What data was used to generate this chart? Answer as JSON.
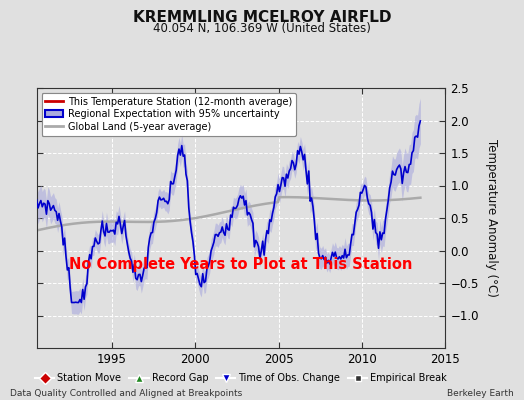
{
  "title": "KREMMLING MCELROY AIRFLD",
  "subtitle": "40.054 N, 106.369 W (United States)",
  "ylabel": "Temperature Anomaly (°C)",
  "xlim": [
    1990.5,
    2015.0
  ],
  "ylim": [
    -1.5,
    2.5
  ],
  "yticks": [
    -1.0,
    -0.5,
    0.0,
    0.5,
    1.0,
    1.5,
    2.0,
    2.5
  ],
  "xticks": [
    1995,
    2000,
    2005,
    2010,
    2015
  ],
  "background_color": "#e0e0e0",
  "plot_bg_color": "#e0e0e0",
  "no_data_text": "No Complete Years to Plot at This Station",
  "footer_left": "Data Quality Controlled and Aligned at Breakpoints",
  "footer_right": "Berkeley Earth",
  "blue_line_color": "#0000cc",
  "blue_band_color": "#aaaadd",
  "gray_line_color": "#aaaaaa",
  "red_line_color": "#cc0000",
  "grid_color": "#ffffff",
  "legend1": [
    "This Temperature Station (12-month average)",
    "Regional Expectation with 95% uncertainty",
    "Global Land (5-year average)"
  ],
  "legend2": [
    {
      "label": "Station Move",
      "marker": "D",
      "color": "#cc0000"
    },
    {
      "label": "Record Gap",
      "marker": "^",
      "color": "#228822"
    },
    {
      "label": "Time of Obs. Change",
      "marker": "v",
      "color": "#0000cc"
    },
    {
      "label": "Empirical Break",
      "marker": "s",
      "color": "#333333"
    }
  ]
}
